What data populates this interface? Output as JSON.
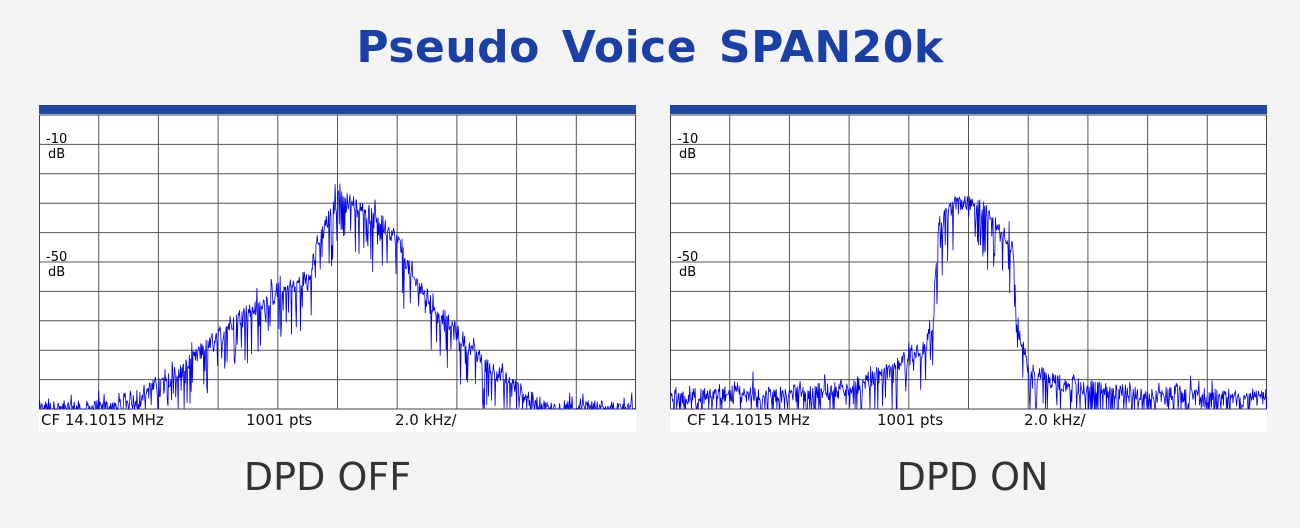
{
  "title": "Pseudo Voice  SPAN20k",
  "chart_data": [
    {
      "type": "line",
      "caption": "DPD OFF",
      "info": {
        "cf": "CF 14.1015 MHz",
        "pts": "1001 pts",
        "span": "2.0 kHz/"
      },
      "y_ticks": [
        {
          "value": "-10",
          "unit": "dB"
        },
        {
          "value": "-50",
          "unit": "dB"
        }
      ],
      "x_range_khz": [
        -10,
        10
      ],
      "ylim": [
        -100,
        0
      ],
      "grid": true,
      "series": [
        {
          "color": "#0000ee",
          "x": [
            -10,
            -9,
            -8,
            -7,
            -6,
            -5,
            -4.5,
            -4,
            -3.5,
            -3,
            -2.5,
            -2,
            -1.5,
            -1,
            -0.5,
            0,
            0.5,
            1,
            1.5,
            2,
            2.5,
            3,
            3.5,
            4,
            4.5,
            5,
            5.5,
            6,
            6.5,
            7,
            8,
            9,
            10
          ],
          "values": [
            -100,
            -100,
            -100,
            -97,
            -92,
            -85,
            -80,
            -75,
            -70,
            -67,
            -64,
            -61,
            -58,
            -55,
            -40,
            -28,
            -30,
            -33,
            -37,
            -42,
            -55,
            -62,
            -68,
            -74,
            -80,
            -85,
            -89,
            -93,
            -97,
            -100,
            -100,
            -100,
            -100
          ]
        }
      ]
    },
    {
      "type": "line",
      "caption": "DPD ON",
      "info": {
        "cf": "CF 14.1015 MHz",
        "pts": "1001 pts",
        "span": "2.0 kHz/"
      },
      "y_ticks": [
        {
          "value": "-10",
          "unit": "dB"
        },
        {
          "value": "-50",
          "unit": "dB"
        }
      ],
      "x_range_khz": [
        -10,
        10
      ],
      "ylim": [
        -100,
        0
      ],
      "grid": true,
      "series": [
        {
          "color": "#0000ee",
          "x": [
            -10,
            -9,
            -8,
            -7,
            -6,
            -5,
            -4,
            -3.5,
            -3,
            -2.5,
            -2,
            -1.5,
            -1.2,
            -1,
            -0.5,
            0,
            0.5,
            1,
            1.5,
            1.6,
            2,
            2.5,
            3,
            4,
            5,
            6,
            7,
            8,
            9,
            10
          ],
          "values": [
            -96,
            -96,
            -95,
            -95,
            -95,
            -94,
            -93,
            -91,
            -88,
            -86,
            -83,
            -80,
            -70,
            -38,
            -30,
            -29,
            -32,
            -37,
            -45,
            -70,
            -86,
            -89,
            -91,
            -93,
            -94,
            -95,
            -95,
            -96,
            -96,
            -96
          ]
        }
      ]
    }
  ]
}
